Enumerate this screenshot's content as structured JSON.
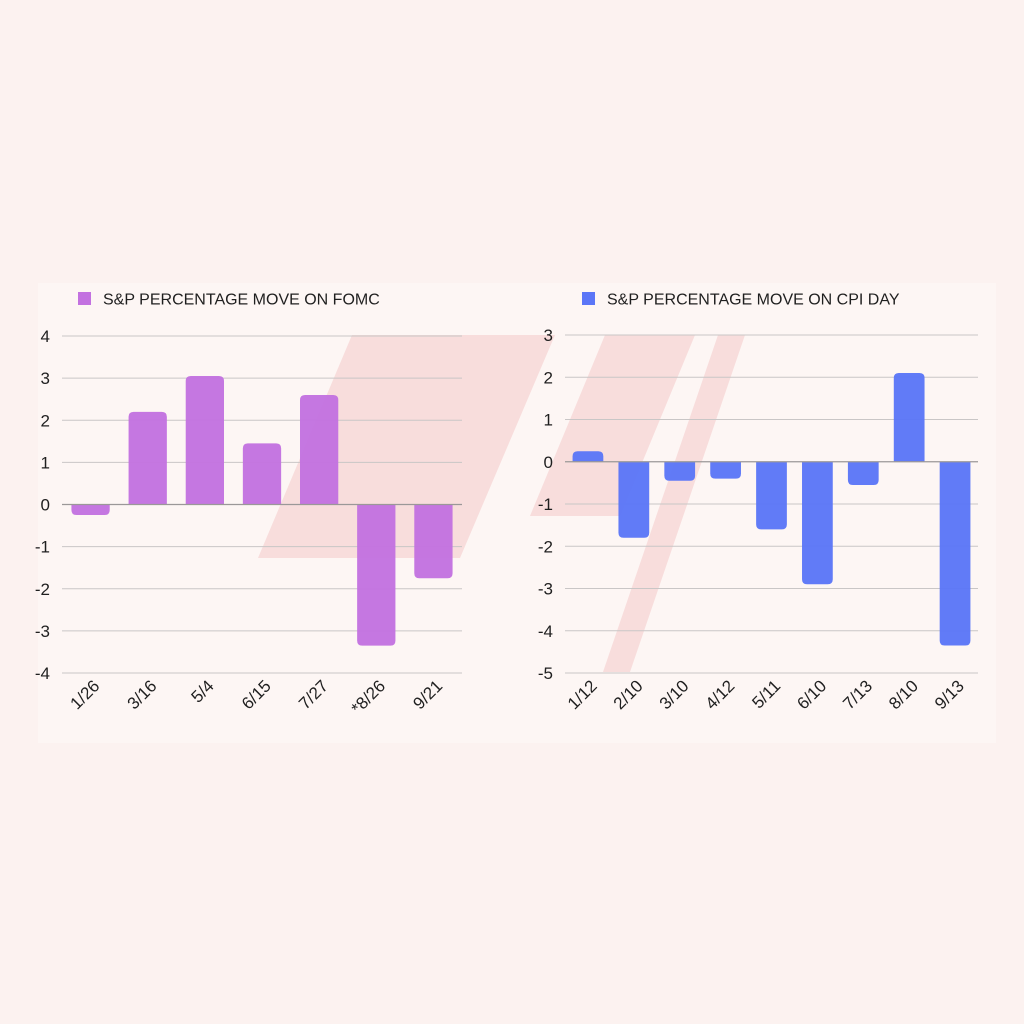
{
  "colors": {
    "background": "#fcf2f0",
    "panel": "#fdf6f4",
    "grid": "#c9c6c6",
    "axis": "#9b9898",
    "text": "#1f1f1f",
    "watermark": "#f4c9c9"
  },
  "chart_data": [
    {
      "type": "bar",
      "legend": "S&P PERCENTAGE MOVE ON FOMC",
      "legend_position": "top-left",
      "color": "#c371e0",
      "categories": [
        "1/26",
        "3/16",
        "5/4",
        "6/15",
        "7/27",
        "*8/26",
        "9/21"
      ],
      "values": [
        -0.25,
        2.2,
        3.05,
        1.45,
        2.6,
        -3.35,
        -1.75
      ],
      "ylim": [
        -4,
        4
      ],
      "yticks": [
        4,
        3,
        2,
        1,
        0,
        -1,
        -2,
        -3,
        -4
      ],
      "grid": true
    },
    {
      "type": "bar",
      "legend": "S&P PERCENTAGE MOVE ON CPI DAY",
      "legend_position": "top-left",
      "color": "#5b76f7",
      "categories": [
        "1/12",
        "2/10",
        "3/10",
        "4/12",
        "5/11",
        "6/10",
        "7/13",
        "8/10",
        "9/13"
      ],
      "values": [
        0.25,
        -1.8,
        -0.45,
        -0.4,
        -1.6,
        -2.9,
        -0.55,
        2.1,
        -4.35
      ],
      "ylim": [
        -5,
        3
      ],
      "yticks": [
        3,
        2,
        1,
        0,
        -1,
        -2,
        -3,
        -4,
        -5
      ],
      "grid": true
    }
  ]
}
